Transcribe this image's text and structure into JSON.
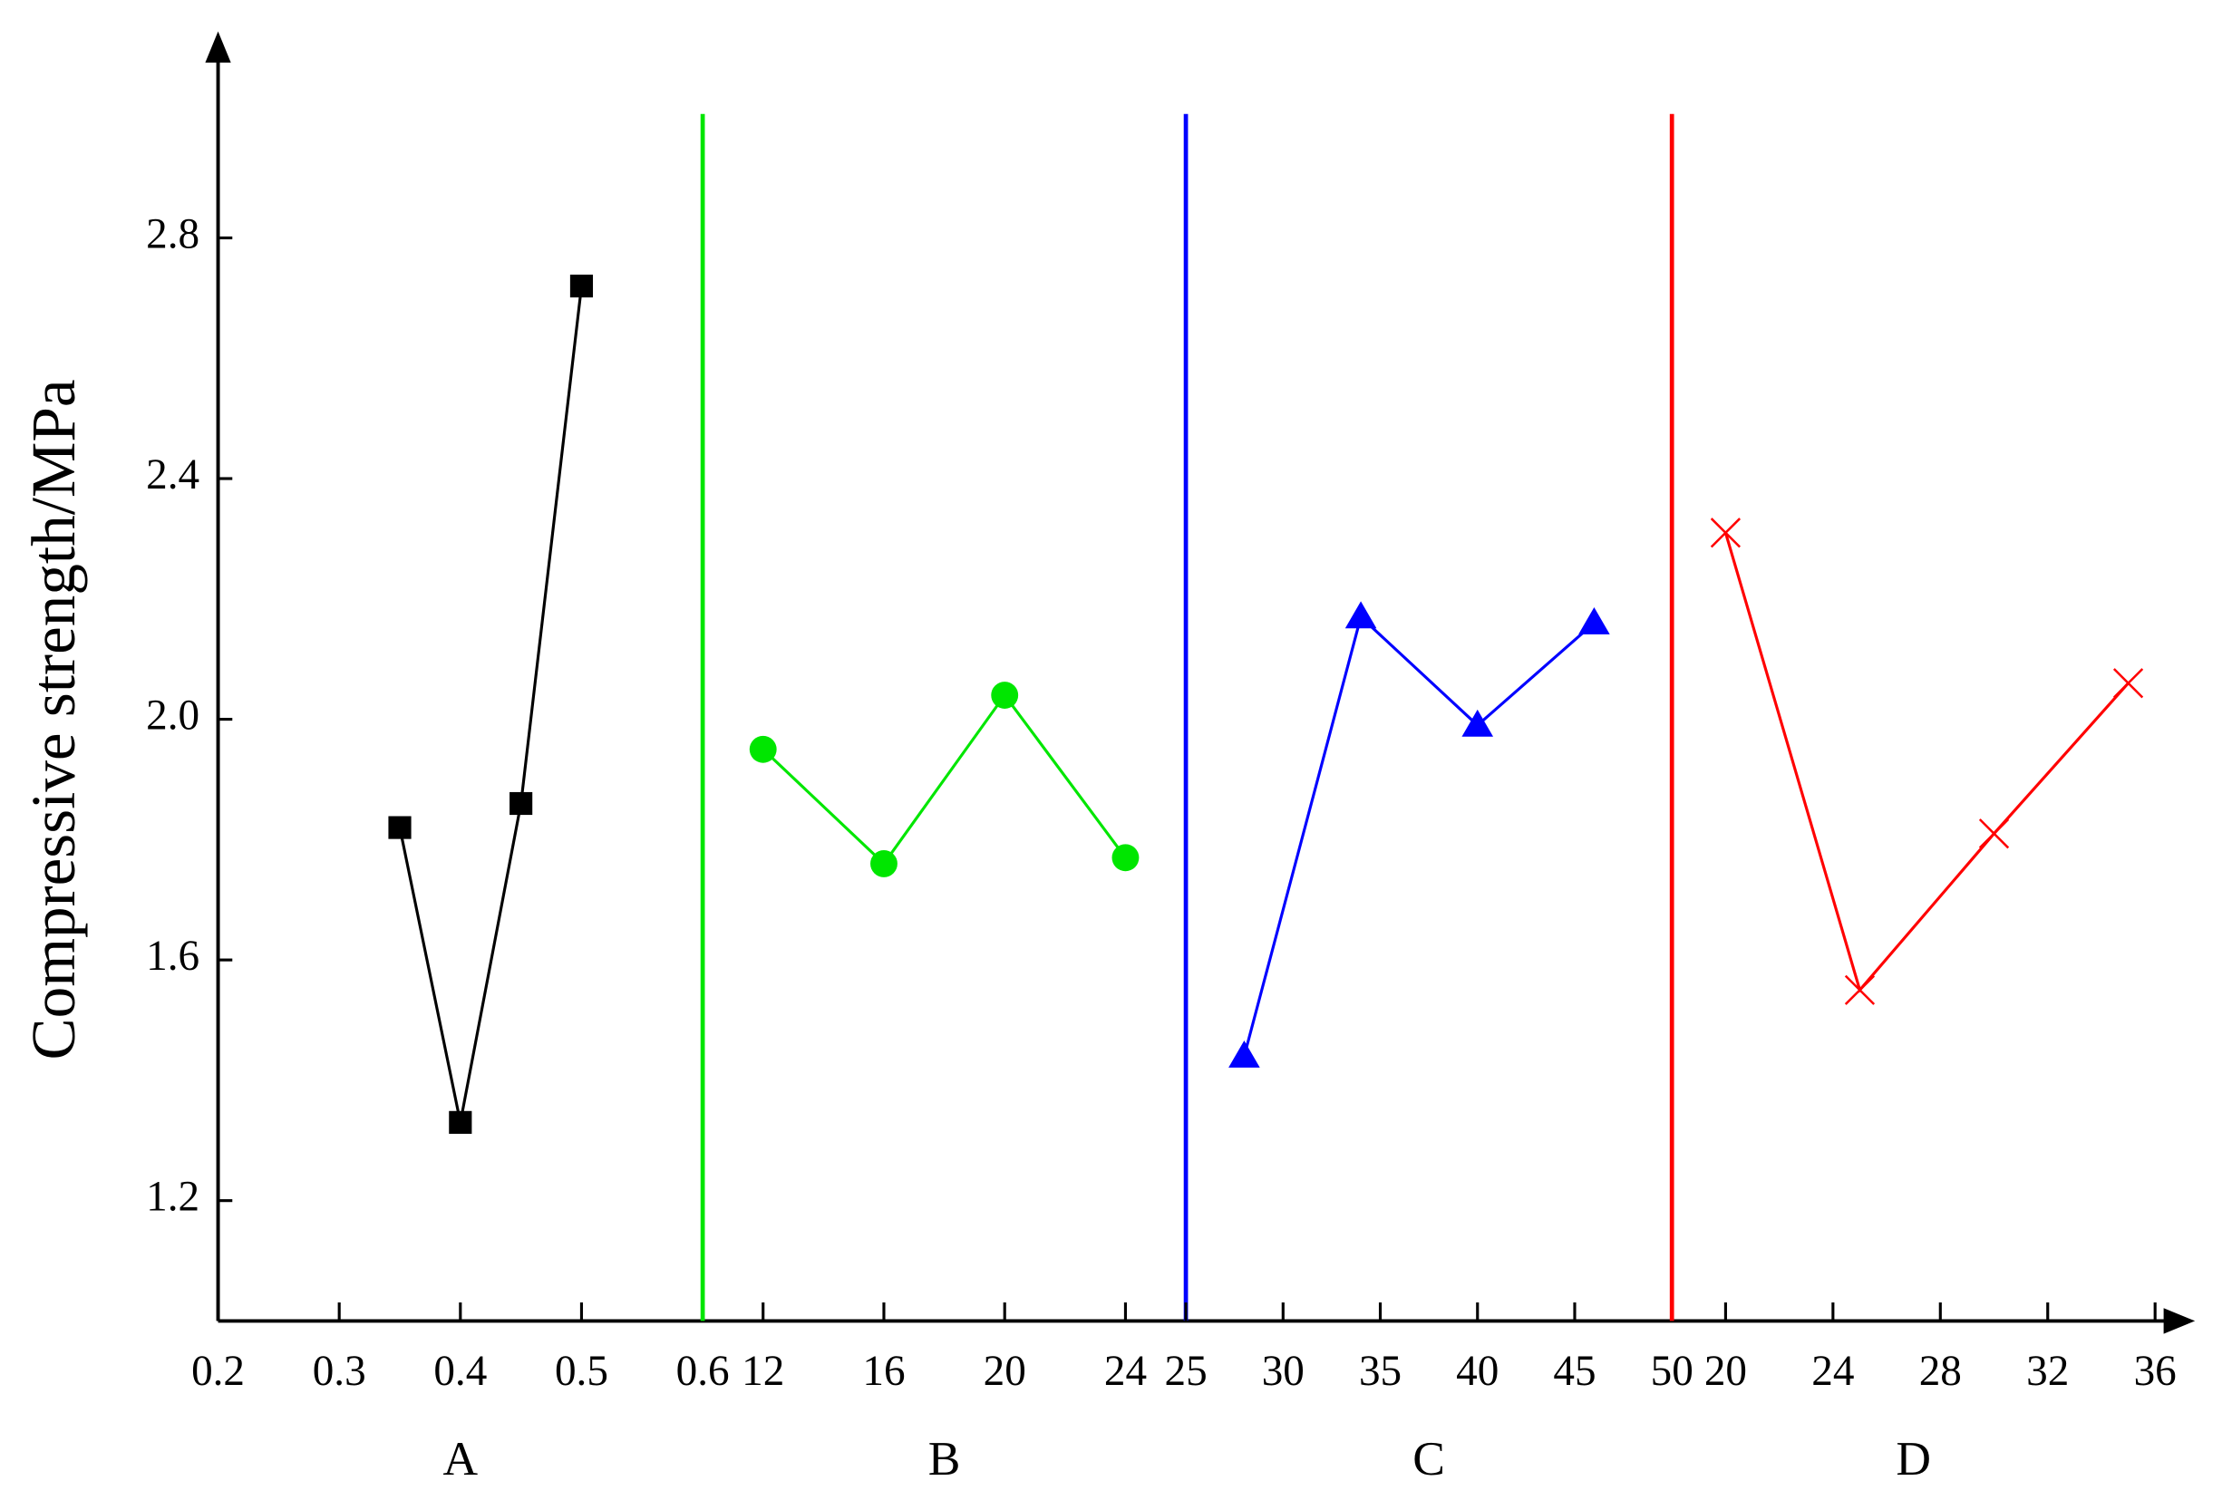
{
  "chart_data": {
    "type": "line",
    "ylabel": "Compressive strength/MPa",
    "ylim": [
      1.0,
      3.0
    ],
    "yticks": [
      1.2,
      1.6,
      {
        "value": 2.0,
        "label": "2.0"
      },
      2.4,
      2.8
    ],
    "panels": [
      {
        "name": "A",
        "color": "#000000",
        "marker": "square",
        "xlim": [
          0.2,
          0.6
        ],
        "xticks": [
          0.2,
          0.3,
          0.4,
          0.5,
          0.6
        ],
        "x": [
          0.35,
          0.4,
          0.45,
          0.5
        ],
        "values": [
          1.82,
          1.33,
          1.86,
          2.72
        ]
      },
      {
        "name": "B",
        "color": "#00e600",
        "marker": "circle",
        "xlim": [
          10,
          26
        ],
        "xticks": [
          12,
          16,
          20,
          24
        ],
        "x": [
          12,
          16,
          20,
          24
        ],
        "values": [
          1.95,
          1.76,
          2.04,
          1.77
        ]
      },
      {
        "name": "C",
        "color": "#0000ff",
        "marker": "triangle",
        "xlim": [
          25,
          50
        ],
        "xticks": [
          25,
          30,
          35,
          40,
          45,
          50
        ],
        "x": [
          28,
          34,
          40,
          46
        ],
        "values": [
          1.44,
          2.17,
          1.99,
          2.16
        ]
      },
      {
        "name": "D",
        "color": "#ff0000",
        "marker": "cross",
        "xlim": [
          18,
          36
        ],
        "xticks": [
          20,
          24,
          28,
          32,
          36
        ],
        "x": [
          20,
          25,
          30,
          35
        ],
        "values": [
          2.31,
          1.55,
          1.81,
          2.06
        ]
      }
    ]
  }
}
